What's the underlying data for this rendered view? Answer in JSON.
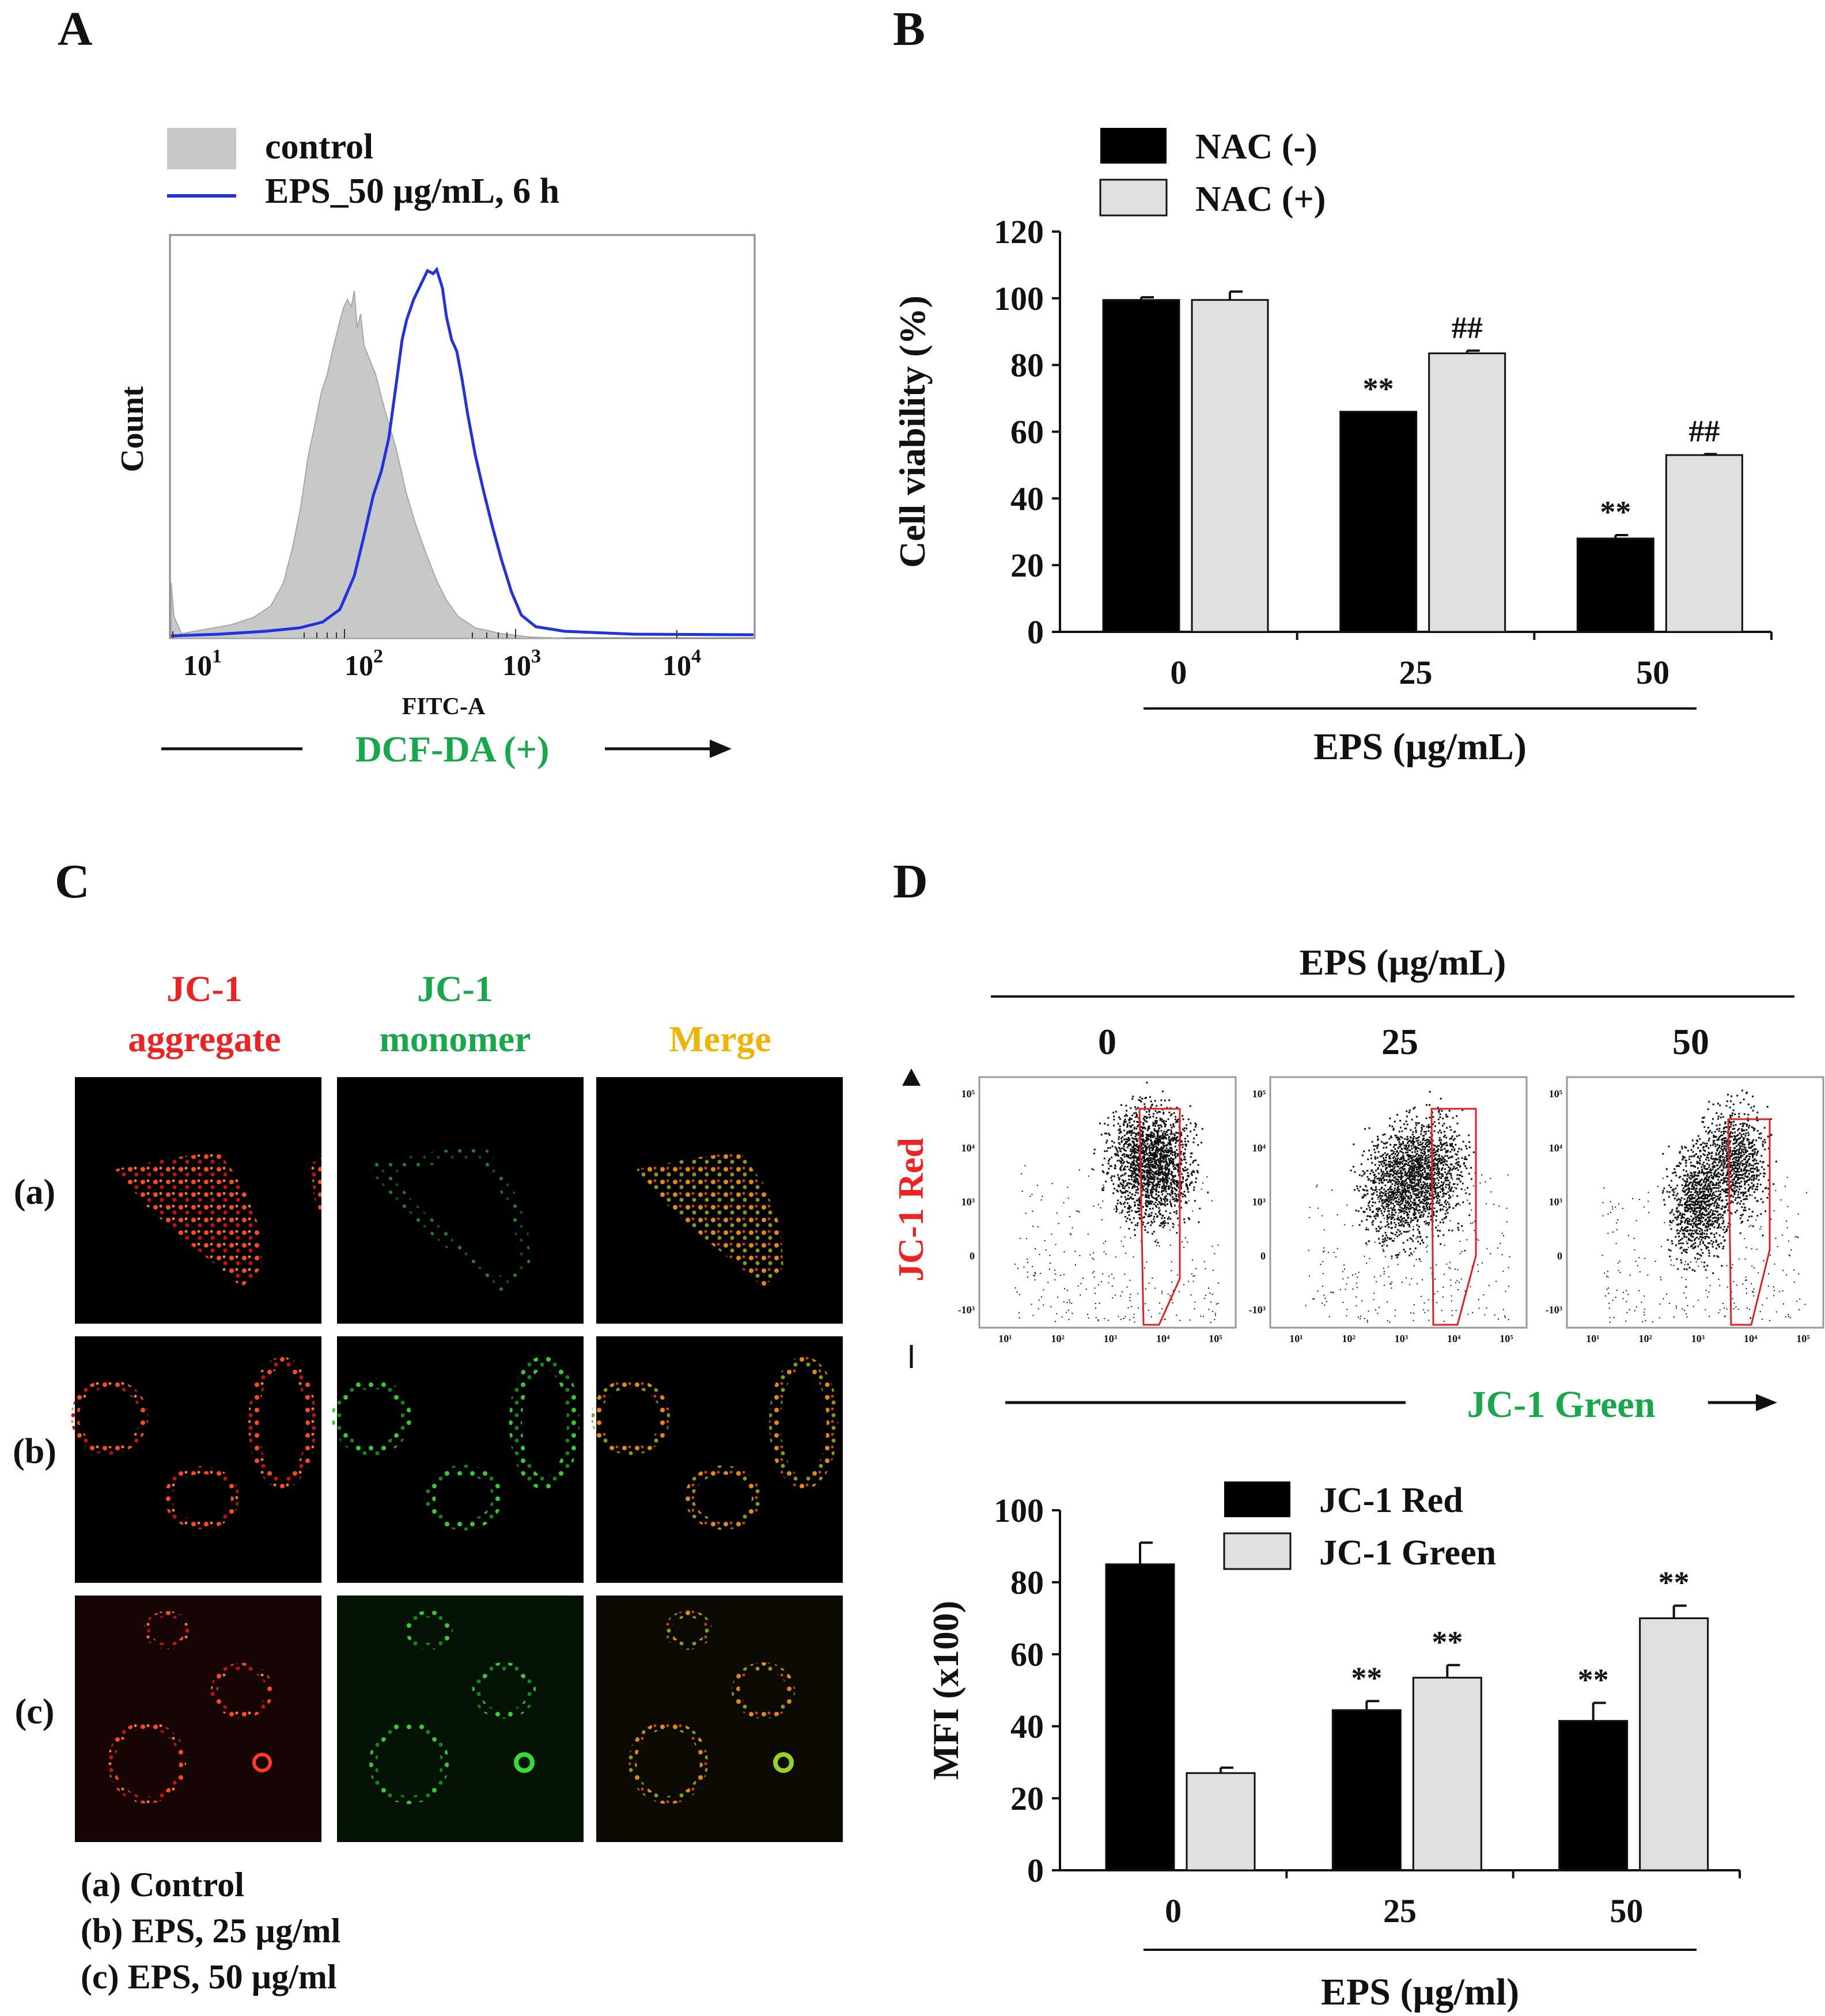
{
  "panels": {
    "a": "A",
    "b": "B",
    "c": "C",
    "d": "D"
  },
  "panel_a": {
    "legend": {
      "control": "control",
      "eps": "EPS_50 µg/mL, 6 h"
    },
    "ylabel": "Count",
    "xlabel": "FITC-A",
    "xticks": [
      "10",
      "10",
      "10",
      "10"
    ],
    "xtick_exp": [
      "1",
      "2",
      "3",
      "4"
    ],
    "arrow_label": "DCF-DA (+)",
    "colors": {
      "control_fill": "#c8c8c8",
      "eps_line": "#2233dd",
      "arrow_label": "#18a84c"
    }
  },
  "panel_c": {
    "col1": {
      "line1": "JC-1",
      "line2": "aggregate"
    },
    "col2": {
      "line1": "JC-1",
      "line2": "monomer"
    },
    "col3": {
      "line1": "",
      "line2": "Merge"
    },
    "rows": [
      "(a)",
      "(b)",
      "(c)"
    ],
    "legend": [
      "(a) Control",
      "(b) EPS, 25 µg/ml",
      "(c) EPS, 50 µg/ml"
    ],
    "colors": {
      "red": "#ee2222",
      "green": "#18a84c",
      "merge": "#f0b400"
    }
  },
  "panel_d": {
    "top_label": "EPS (µg/mL)",
    "conc": [
      "0",
      "25",
      "50"
    ],
    "yaxis_label": "JC-1 Red",
    "xaxis_label": "JC-1 Green",
    "flow_ticks": {
      "y": [
        "10⁵",
        "10⁴",
        "10³",
        "0",
        "-10³"
      ],
      "x": [
        "10¹",
        "10²",
        "10³",
        "10⁴",
        "10⁵"
      ]
    }
  },
  "chart_data": [
    {
      "type": "bar",
      "panel": "B",
      "categories": [
        "0",
        "25",
        "50"
      ],
      "series": [
        {
          "name": "NAC (-)",
          "values": [
            99.5,
            66,
            28
          ],
          "errors": [
            0.8,
            0,
            1
          ],
          "annotations": [
            "",
            "**",
            "**"
          ],
          "color": "#000000"
        },
        {
          "name": "NAC (+)",
          "values": [
            99.5,
            83.5,
            53
          ],
          "errors": [
            2.5,
            0.8,
            0.3
          ],
          "annotations": [
            "",
            "##",
            "##"
          ],
          "color": "#e0e0e0"
        }
      ],
      "title": "",
      "xlabel": "EPS (µg/mL)",
      "ylabel": "Cell viability (%)",
      "ylim": [
        0,
        120
      ],
      "yticks": [
        "0",
        "20",
        "40",
        "60",
        "80",
        "100",
        "120"
      ]
    },
    {
      "type": "bar",
      "panel": "D",
      "categories": [
        "0",
        "25",
        "50"
      ],
      "series": [
        {
          "name": "JC-1 Red",
          "values": [
            85,
            44.5,
            41.5
          ],
          "errors": [
            6,
            2.5,
            5
          ],
          "annotations": [
            "",
            "**",
            "**"
          ],
          "color": "#000000"
        },
        {
          "name": "JC-1 Green",
          "values": [
            27,
            53.5,
            70
          ],
          "errors": [
            1.5,
            3.5,
            3.5
          ],
          "annotations": [
            "",
            "**",
            "**"
          ],
          "color": "#e0e0e0"
        }
      ],
      "title": "",
      "xlabel": "EPS (µg/ml)",
      "ylabel": "MFI (x100)",
      "ylim": [
        0,
        100
      ],
      "yticks": [
        "0",
        "20",
        "40",
        "60",
        "80",
        "100"
      ]
    }
  ]
}
